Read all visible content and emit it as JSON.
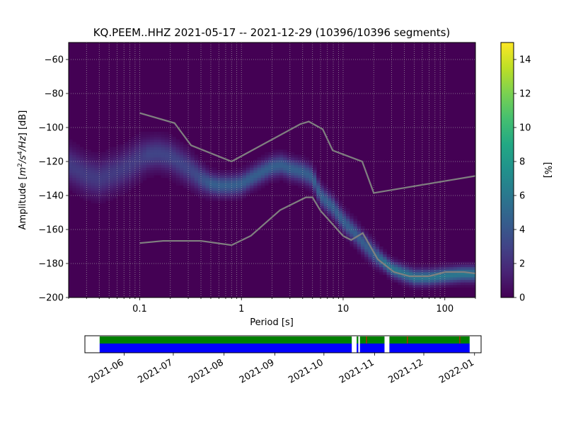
{
  "chart_data": [
    {
      "type": "heatmap",
      "title": "KQ.PEEM..HHZ   2021-05-17 -- 2021-12-29  (10396/10396 segments)",
      "xlabel": "Period [s]",
      "ylabel": "Amplitude [$m^2/s^4/Hz$] [dB]",
      "ylabel_parts": {
        "pre": "Amplitude [",
        "m": "m",
        "sup2": "2",
        "slash_s": "/s",
        "sup4": "4",
        "hz": "/Hz",
        "post": "] [dB]"
      },
      "x_scale": "log",
      "xlim": [
        0.02,
        200
      ],
      "ylim": [
        -200,
        -50
      ],
      "x_ticks": [
        0.1,
        1,
        10,
        100
      ],
      "x_tick_labels": [
        "0.1",
        "1",
        "10",
        "100"
      ],
      "y_ticks": [
        -200,
        -180,
        -160,
        -140,
        -120,
        -100,
        -80,
        -60
      ],
      "y_tick_labels": [
        "−200",
        "−180",
        "−160",
        "−140",
        "−120",
        "−100",
        "−80",
        "−60"
      ],
      "grid": true,
      "colormap": "viridis",
      "colorbar": {
        "label": "[%]",
        "range": [
          0,
          15
        ],
        "ticks": [
          0,
          2,
          4,
          6,
          8,
          10,
          12,
          14
        ],
        "tick_labels": [
          "0",
          "2",
          "4",
          "6",
          "8",
          "10",
          "12",
          "14"
        ]
      },
      "background_color": "#440154",
      "mode_ridge": {
        "periods": [
          0.02,
          0.03,
          0.04,
          0.06,
          0.08,
          0.1,
          0.12,
          0.15,
          0.2,
          0.3,
          0.4,
          0.5,
          0.6,
          0.8,
          1.0,
          1.3,
          1.6,
          2.0,
          2.5,
          3.0,
          4.0,
          5.0,
          6.0,
          8.0,
          10,
          13,
          16,
          20,
          25,
          30,
          40,
          50,
          70,
          100,
          150,
          200
        ],
        "amplitude_db": [
          -122,
          -128,
          -130,
          -126,
          -122,
          -118,
          -116,
          -115,
          -117,
          -124,
          -130,
          -133,
          -134,
          -134,
          -133,
          -129,
          -126,
          -123,
          -122,
          -124,
          -126,
          -129,
          -140,
          -147,
          -155,
          -162,
          -168,
          -174,
          -179,
          -183,
          -186,
          -188,
          -188,
          -187,
          -186,
          -186
        ],
        "spread_db": [
          7,
          7,
          7,
          7,
          7,
          7,
          6,
          6,
          6,
          6,
          5,
          4,
          4,
          4,
          4,
          4,
          4,
          4,
          4,
          4,
          4,
          4,
          4,
          4,
          4,
          4,
          4,
          4,
          3,
          3,
          3,
          3,
          3,
          3,
          3,
          3
        ]
      },
      "noise_models": [
        {
          "name": "high",
          "periods": [
            0.1,
            0.22,
            0.32,
            0.8,
            3.8,
            4.6,
            6.3,
            7.9,
            15.4,
            20,
            354.8
          ],
          "amplitude_db": [
            -91.5,
            -97.4,
            -110.5,
            -120,
            -98,
            -96.5,
            -101,
            -113.5,
            -120,
            -138.5,
            -126
          ]
        },
        {
          "name": "low",
          "periods": [
            0.1,
            0.17,
            0.4,
            0.8,
            1.24,
            2.4,
            4.3,
            5,
            6,
            10,
            12,
            15.6,
            21.9,
            31.6,
            45,
            70,
            101,
            154,
            328
          ],
          "amplitude_db": [
            -168,
            -166.7,
            -166.7,
            -169.2,
            -163.7,
            -148.6,
            -141.1,
            -141.1,
            -149,
            -163.8,
            -166.2,
            -162.1,
            -177.5,
            -185,
            -187.5,
            -187.5,
            -185,
            -185,
            -187.5
          ]
        }
      ]
    },
    {
      "type": "timeline",
      "x_ticks": [
        "2021-06",
        "2021-07",
        "2021-08",
        "2021-09",
        "2021-10",
        "2021-11",
        "2021-12",
        "2022-01"
      ],
      "range": [
        "2021-05-17",
        "2021-12-29"
      ],
      "colors": {
        "data": "#0000ff",
        "psd": "#008000",
        "gap_marker": "#ff0000"
      },
      "data_segments": [
        [
          "2021-05-17",
          "2021-10-18"
        ],
        [
          "2021-10-21",
          "2021-10-22"
        ],
        [
          "2021-10-23",
          "2021-11-07"
        ],
        [
          "2021-11-10",
          "2021-12-29"
        ]
      ],
      "psd_segments": [
        [
          "2021-05-17",
          "2021-10-18"
        ],
        [
          "2021-10-21",
          "2021-10-22"
        ],
        [
          "2021-10-23",
          "2021-11-07"
        ],
        [
          "2021-11-10",
          "2021-12-29"
        ]
      ],
      "gap_markers": [
        "2021-10-27",
        "2021-11-21",
        "2021-12-23"
      ]
    }
  ]
}
